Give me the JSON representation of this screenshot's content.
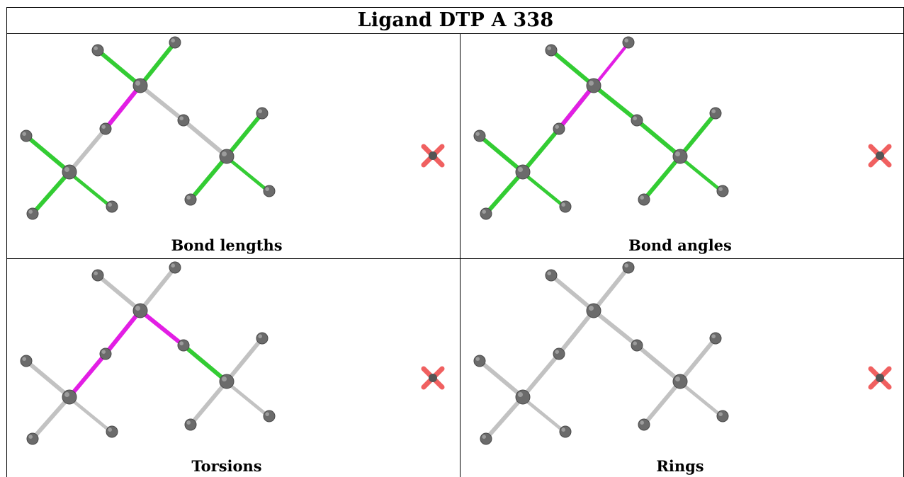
{
  "title": "Ligand DTP A 338",
  "colors": {
    "magenta": "#e21ee4",
    "green": "#33cc33",
    "gray_bond": "#c2c2c2",
    "atom": "#6b6b6b",
    "cross": "#f06060"
  },
  "panels": [
    {
      "caption": "Bond lengths",
      "bonds": [
        "green",
        "green",
        "magenta",
        "magenta",
        "gray",
        "gray",
        "gray",
        "gray",
        "green",
        "green",
        "green-h",
        "green",
        "green",
        "green-h"
      ]
    },
    {
      "caption": "Bond angles",
      "bonds": [
        "green",
        "magenta-h",
        "green",
        "magenta",
        "green",
        "green",
        "green",
        "green",
        "green",
        "green",
        "green-h",
        "green",
        "green",
        "green-h"
      ]
    },
    {
      "caption": "Torsions",
      "bonds": [
        "gray",
        "gray",
        "magenta",
        "magenta",
        "magenta",
        "magenta",
        "gray",
        "green",
        "gray",
        "gray",
        "gray-h",
        "gray",
        "gray",
        "gray-h"
      ]
    },
    {
      "caption": "Rings",
      "bonds": [
        "gray",
        "gray",
        "gray",
        "gray",
        "gray",
        "gray",
        "gray",
        "gray",
        "gray",
        "gray",
        "gray-h",
        "gray",
        "gray",
        "gray-h"
      ]
    }
  ]
}
